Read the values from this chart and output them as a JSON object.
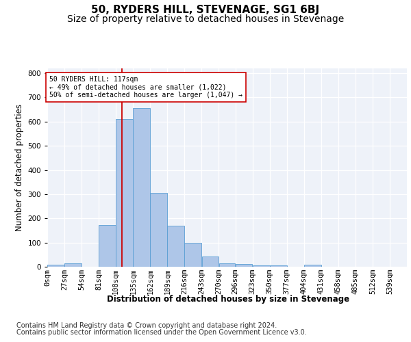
{
  "title": "50, RYDERS HILL, STEVENAGE, SG1 6BJ",
  "subtitle": "Size of property relative to detached houses in Stevenage",
  "xlabel": "Distribution of detached houses by size in Stevenage",
  "ylabel": "Number of detached properties",
  "footer_line1": "Contains HM Land Registry data © Crown copyright and database right 2024.",
  "footer_line2": "Contains public sector information licensed under the Open Government Licence v3.0.",
  "bin_labels": [
    "0sqm",
    "27sqm",
    "54sqm",
    "81sqm",
    "108sqm",
    "135sqm",
    "162sqm",
    "189sqm",
    "216sqm",
    "243sqm",
    "270sqm",
    "296sqm",
    "323sqm",
    "350sqm",
    "377sqm",
    "404sqm",
    "431sqm",
    "458sqm",
    "485sqm",
    "512sqm",
    "539sqm"
  ],
  "bin_edges": [
    0,
    27,
    54,
    81,
    108,
    135,
    162,
    189,
    216,
    243,
    270,
    296,
    323,
    350,
    377,
    404,
    431,
    458,
    485,
    512,
    539,
    566
  ],
  "bar_values": [
    8,
    15,
    0,
    172,
    610,
    655,
    305,
    170,
    100,
    42,
    15,
    10,
    7,
    5,
    0,
    8,
    0,
    0,
    0,
    0,
    0
  ],
  "bar_color": "#aec6e8",
  "bar_edge_color": "#5a9fd4",
  "vline_x": 117,
  "vline_color": "#cc0000",
  "annotation_line1": "50 RYDERS HILL: 117sqm",
  "annotation_line2": "← 49% of detached houses are smaller (1,022)",
  "annotation_line3": "50% of semi-detached houses are larger (1,047) →",
  "annotation_box_color": "#ffffff",
  "annotation_box_edge": "#cc0000",
  "ylim": [
    0,
    820
  ],
  "yticks": [
    0,
    100,
    200,
    300,
    400,
    500,
    600,
    700,
    800
  ],
  "background_color": "#eef2f9",
  "grid_color": "#ffffff",
  "title_fontsize": 11,
  "subtitle_fontsize": 10,
  "axis_label_fontsize": 8.5,
  "tick_fontsize": 7.5,
  "footer_fontsize": 7.0
}
